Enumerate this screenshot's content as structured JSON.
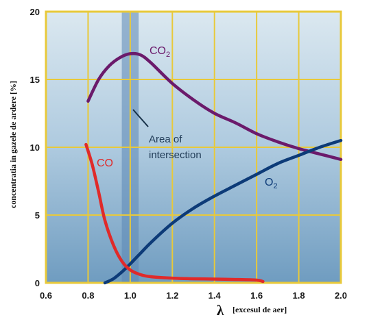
{
  "chart_data": {
    "type": "line",
    "xlabel_symbol": "λ",
    "xlabel": "[excesul de aer]",
    "ylabel": "concentratia in gazele de ardere [%]",
    "xlim": [
      0.6,
      2.0
    ],
    "ylim": [
      0,
      20
    ],
    "x_ticks": [
      "0.6",
      "0.8",
      "1.0",
      "1.2",
      "1.4",
      "1.6",
      "1.8",
      "2.0"
    ],
    "y_ticks": [
      "0",
      "5",
      "10",
      "15",
      "20"
    ],
    "grid": true,
    "series": [
      {
        "name": "CO2",
        "label_main": "CO",
        "label_sub": "2",
        "color": "#6b1a6b",
        "x": [
          0.8,
          0.85,
          0.9,
          0.95,
          1.0,
          1.05,
          1.1,
          1.2,
          1.3,
          1.4,
          1.5,
          1.6,
          1.7,
          1.8,
          1.9,
          2.0
        ],
        "y": [
          13.4,
          15.0,
          16.0,
          16.6,
          16.9,
          16.8,
          16.2,
          14.7,
          13.5,
          12.5,
          11.8,
          11.0,
          10.4,
          9.9,
          9.5,
          9.1
        ]
      },
      {
        "name": "O2",
        "label_main": "O",
        "label_sub": "2",
        "color": "#0d3b78",
        "x": [
          0.88,
          0.92,
          0.96,
          1.0,
          1.05,
          1.1,
          1.2,
          1.3,
          1.4,
          1.5,
          1.6,
          1.7,
          1.8,
          1.9,
          2.0
        ],
        "y": [
          0.0,
          0.3,
          0.8,
          1.4,
          2.2,
          3.0,
          4.4,
          5.5,
          6.4,
          7.2,
          8.0,
          8.8,
          9.4,
          10.0,
          10.5
        ]
      },
      {
        "name": "CO",
        "label_main": "CO",
        "label_sub": "",
        "color": "#e02a2a",
        "x": [
          0.79,
          0.82,
          0.85,
          0.88,
          0.92,
          0.96,
          1.0,
          1.05,
          1.1,
          1.2,
          1.3,
          1.4,
          1.5,
          1.6,
          1.63
        ],
        "y": [
          10.2,
          8.7,
          6.7,
          4.6,
          2.8,
          1.6,
          0.95,
          0.6,
          0.45,
          0.35,
          0.3,
          0.28,
          0.25,
          0.2,
          0.1
        ]
      }
    ],
    "band": {
      "from": 0.96,
      "to": 1.04,
      "label_line1": "Area of",
      "label_line2": "intersection"
    }
  }
}
